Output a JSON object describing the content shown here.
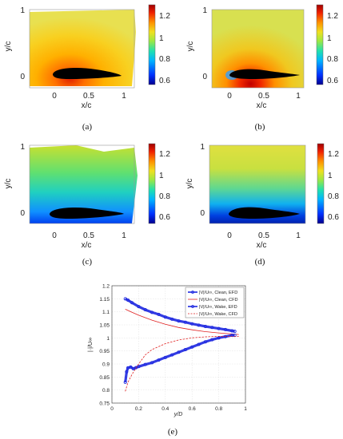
{
  "panels": [
    {
      "id": "a",
      "caption": "(a)",
      "ylabel": "y/c",
      "xlabel": "x/c",
      "xticks": [
        "0",
        "0.5",
        "1"
      ],
      "yticks": [
        "0",
        "1"
      ],
      "cbar_ticks": [
        "1.2",
        "1",
        "0.8",
        "0.6"
      ]
    },
    {
      "id": "b",
      "caption": "(b)",
      "ylabel": "y/c",
      "xlabel": "x/c",
      "xticks": [
        "0",
        "0.5",
        "1"
      ],
      "yticks": [
        "0",
        "1"
      ],
      "cbar_ticks": [
        "1.2",
        "1",
        "0.8",
        "0.6"
      ]
    },
    {
      "id": "c",
      "caption": "(c)",
      "ylabel": "y/c",
      "xlabel": "x/c",
      "xticks": [
        "0",
        "0.5",
        "1"
      ],
      "yticks": [
        "0",
        "1"
      ],
      "cbar_ticks": [
        "1.2",
        "1",
        "0.8",
        "0.6"
      ]
    },
    {
      "id": "d",
      "caption": "(d)",
      "ylabel": "y/c",
      "xlabel": "x/c",
      "xticks": [
        "0",
        "0.5",
        "1"
      ],
      "yticks": [
        "0",
        "1"
      ],
      "cbar_ticks": [
        "1.2",
        "1",
        "0.8",
        "0.6"
      ]
    }
  ],
  "colormap": [
    "#00008f",
    "#0050ff",
    "#00c8e6",
    "#40e080",
    "#c8e830",
    "#f0d020",
    "#ff9000",
    "#f03000",
    "#b00000"
  ],
  "chart_data": {
    "type": "line",
    "caption": "(e)",
    "xlabel": "y/D",
    "ylabel": "|·|/U∞",
    "xlim": [
      0,
      1
    ],
    "ylim": [
      0.75,
      1.2
    ],
    "xticks": [
      "0",
      "0.2",
      "0.4",
      "0.6",
      "0.8",
      "1"
    ],
    "yticks": [
      "0.75",
      "0.8",
      "0.85",
      "0.9",
      "0.95",
      "1",
      "1.05",
      "1.1",
      "1.15",
      "1.2"
    ],
    "legend_position": "top-right",
    "series": [
      {
        "name": "|V|/U∞, Clean, EFD",
        "style": "markers",
        "color": "#1e28e0",
        "x": [
          0.1,
          0.12,
          0.15,
          0.2,
          0.25,
          0.3,
          0.35,
          0.4,
          0.45,
          0.5,
          0.55,
          0.6,
          0.65,
          0.7,
          0.75,
          0.8,
          0.85,
          0.9,
          0.92
        ],
        "y": [
          1.15,
          1.145,
          1.135,
          1.12,
          1.108,
          1.098,
          1.09,
          1.08,
          1.072,
          1.065,
          1.06,
          1.054,
          1.049,
          1.044,
          1.04,
          1.036,
          1.032,
          1.027,
          1.025
        ]
      },
      {
        "name": "|V|/U∞, Clean, CFD",
        "style": "solid",
        "color": "#e02020",
        "x": [
          0.1,
          0.15,
          0.2,
          0.3,
          0.4,
          0.5,
          0.6,
          0.7,
          0.8,
          0.9,
          0.95
        ],
        "y": [
          1.11,
          1.098,
          1.087,
          1.068,
          1.052,
          1.04,
          1.031,
          1.024,
          1.019,
          1.015,
          1.013
        ]
      },
      {
        "name": "|V|/U∞, Wake, EFD",
        "style": "markers",
        "color": "#1e28e0",
        "x": [
          0.1,
          0.11,
          0.12,
          0.14,
          0.16,
          0.18,
          0.2,
          0.25,
          0.3,
          0.35,
          0.4,
          0.45,
          0.5,
          0.55,
          0.6,
          0.65,
          0.7,
          0.75,
          0.8,
          0.85,
          0.9,
          0.92
        ],
        "y": [
          0.83,
          0.87,
          0.885,
          0.888,
          0.882,
          0.886,
          0.89,
          0.898,
          0.905,
          0.915,
          0.925,
          0.935,
          0.945,
          0.955,
          0.965,
          0.975,
          0.985,
          0.993,
          1.0,
          1.005,
          1.01,
          1.01
        ]
      },
      {
        "name": "|V|/U∞, Wake, CFD",
        "style": "dashed",
        "color": "#e02020",
        "x": [
          0.1,
          0.12,
          0.15,
          0.2,
          0.25,
          0.3,
          0.4,
          0.5,
          0.6,
          0.7,
          0.8,
          0.9,
          0.95
        ],
        "y": [
          0.795,
          0.83,
          0.86,
          0.9,
          0.935,
          0.955,
          0.978,
          0.992,
          1.0,
          1.004,
          1.006,
          1.006,
          1.006
        ]
      }
    ]
  }
}
